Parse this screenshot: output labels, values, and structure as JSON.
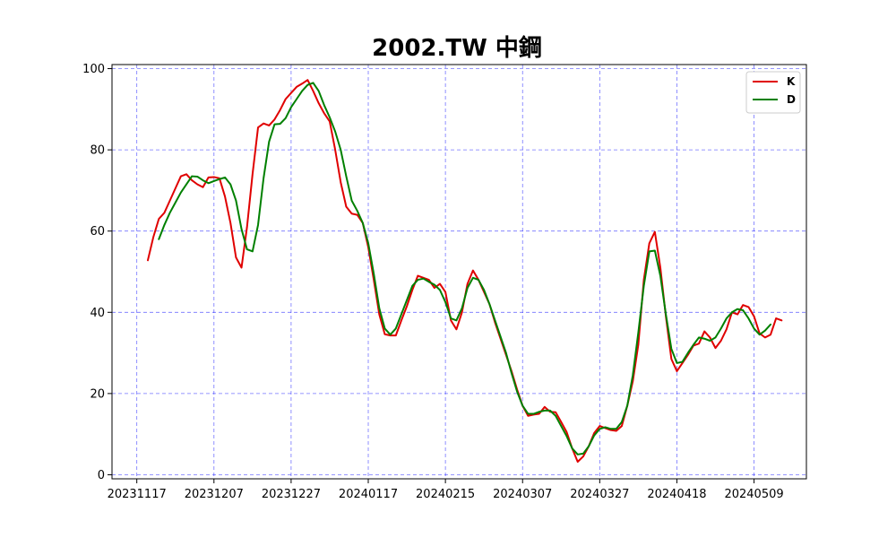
{
  "chart_data": {
    "type": "line",
    "title": "2002.TW 中鋼",
    "xlabel": "",
    "ylabel": "",
    "ylim": [
      -1,
      101
    ],
    "grid": true,
    "legend_position": "top-right",
    "yticks": [
      0,
      20,
      40,
      60,
      80,
      100
    ],
    "xticks": [
      {
        "index": 0,
        "label": "20231117"
      },
      {
        "index": 14,
        "label": "20231207"
      },
      {
        "index": 28,
        "label": "20231227"
      },
      {
        "index": 42,
        "label": "20240117"
      },
      {
        "index": 56,
        "label": "20240215"
      },
      {
        "index": 70,
        "label": "20240307"
      },
      {
        "index": 84,
        "label": "20240327"
      },
      {
        "index": 98,
        "label": "20240418"
      },
      {
        "index": 112,
        "label": "20240509"
      }
    ],
    "x_range": [
      -4.5,
      121.5
    ],
    "series": [
      {
        "name": "K",
        "color": "#e00000",
        "start_index": 2,
        "values": [
          52.8,
          58.5,
          63.0,
          64.5,
          67.5,
          70.5,
          73.5,
          74.0,
          72.5,
          71.5,
          70.8,
          73.2,
          73.3,
          73.0,
          68.5,
          62.0,
          53.5,
          51.0,
          61.0,
          74.0,
          85.5,
          86.5,
          86.0,
          87.5,
          89.8,
          92.5,
          94.0,
          95.5,
          96.3,
          97.2,
          94.5,
          91.5,
          89.0,
          87.0,
          80.0,
          72.0,
          66.0,
          64.3,
          64.0,
          62.0,
          56.0,
          48.0,
          39.5,
          34.6,
          34.3,
          34.3,
          38.0,
          41.5,
          45.5,
          49.0,
          48.5,
          48.0,
          46.0,
          47.0,
          45.0,
          38.0,
          35.8,
          40.0,
          47.0,
          50.3,
          48.0,
          45.0,
          42.0,
          37.5,
          33.5,
          29.5,
          25.5,
          21.0,
          17.0,
          14.5,
          14.8,
          15.0,
          16.7,
          15.5,
          15.4,
          13.0,
          10.5,
          6.5,
          3.2,
          4.5,
          7.0,
          10.3,
          12.0,
          11.5,
          11.0,
          10.8,
          12.0,
          17.0,
          23.0,
          32.0,
          48.0,
          57.0,
          59.8,
          51.0,
          39.0,
          28.5,
          25.5,
          27.5,
          29.5,
          31.8,
          32.3,
          35.3,
          33.8,
          31.2,
          33.0,
          35.8,
          40.0,
          39.5,
          41.8,
          41.3,
          39.0,
          34.8,
          33.8,
          34.5,
          38.5,
          38.0
        ]
      },
      {
        "name": "D",
        "color": "#008000",
        "start_index": 4,
        "values": [
          58.0,
          61.5,
          64.5,
          67.0,
          69.5,
          71.5,
          73.5,
          73.4,
          72.5,
          71.8,
          72.3,
          72.8,
          73.2,
          71.5,
          67.5,
          60.5,
          55.5,
          55.0,
          61.5,
          73.0,
          82.0,
          86.3,
          86.4,
          87.8,
          90.5,
          92.5,
          94.5,
          96.0,
          96.5,
          94.5,
          91.0,
          88.0,
          84.5,
          80.0,
          73.5,
          67.5,
          65.0,
          62.0,
          57.0,
          49.5,
          41.0,
          36.0,
          34.5,
          36.0,
          39.5,
          43.0,
          46.5,
          48.0,
          48.3,
          47.5,
          46.8,
          45.5,
          42.5,
          38.5,
          38.0,
          41.0,
          46.0,
          48.5,
          48.0,
          45.5,
          42.0,
          38.0,
          34.0,
          30.0,
          25.0,
          20.5,
          17.0,
          15.0,
          15.0,
          15.5,
          15.8,
          15.8,
          14.5,
          12.0,
          9.5,
          6.5,
          5.0,
          5.2,
          7.0,
          9.7,
          11.3,
          11.7,
          11.3,
          11.3,
          13.0,
          17.0,
          24.5,
          35.0,
          46.5,
          55.0,
          55.2,
          49.0,
          39.5,
          31.0,
          27.5,
          27.8,
          30.0,
          32.0,
          33.8,
          33.5,
          33.0,
          33.8,
          36.0,
          38.5,
          40.0,
          40.8,
          40.5,
          38.5,
          36.0,
          34.5,
          35.5,
          37.0
        ]
      }
    ]
  }
}
